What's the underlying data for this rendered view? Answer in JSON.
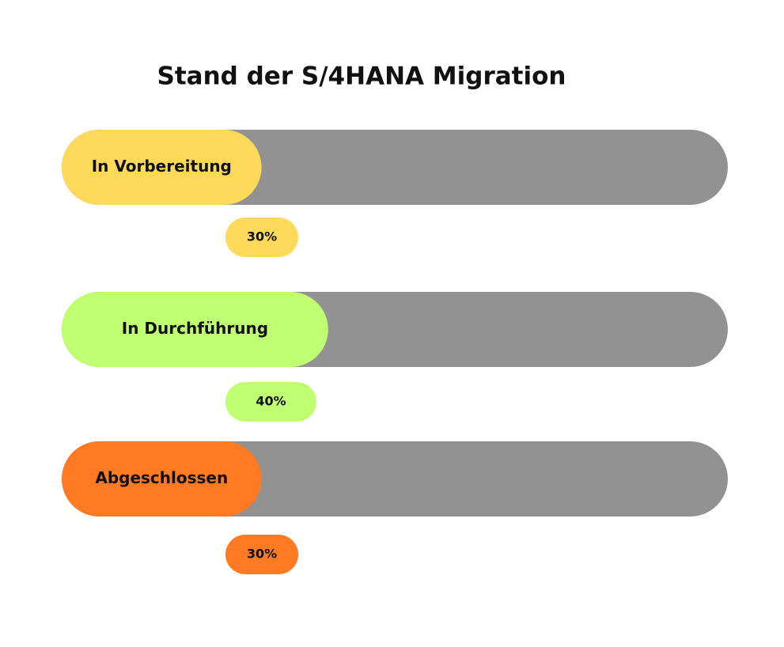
{
  "chart_data": {
    "type": "bar",
    "title": "Stand der S/4HANA Migration",
    "categories": [
      "In Vorbereitung",
      "In Durchführung",
      "Abgeschlossen"
    ],
    "values": [
      30,
      40,
      30
    ],
    "value_labels": [
      "30%",
      "40%",
      "30%"
    ],
    "colors": [
      "#ffd95a",
      "#c1ff72",
      "#ff7a22"
    ],
    "track_color": "#929292",
    "xlim": [
      0,
      100
    ]
  }
}
